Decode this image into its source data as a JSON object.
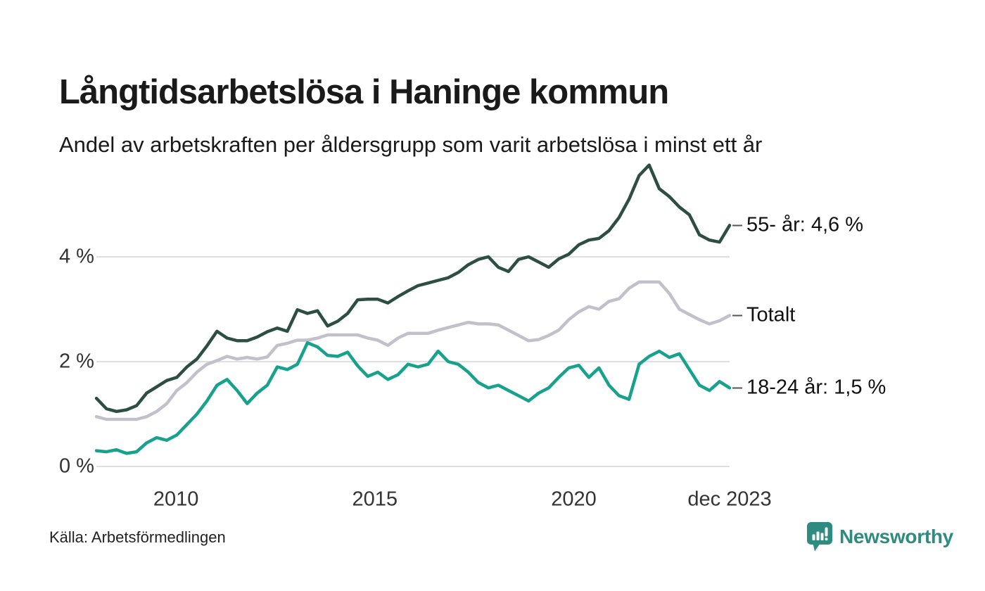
{
  "header": {
    "title": "Långtidsarbetslösa i Haninge kommun",
    "subtitle": "Andel av arbetskraften per åldersgrupp som varit arbetslösa i minst ett år"
  },
  "footer": {
    "source": "Källa: Arbetsförmedlingen",
    "brand": "Newsworthy",
    "brand_color": "#2e8b7f"
  },
  "chart_data": {
    "type": "line",
    "title": "Långtidsarbetslösa i Haninge kommun",
    "subtitle": "Andel av arbetskraften per åldersgrupp som varit arbetslösa i minst ett år",
    "unit": "% av arbetskraften",
    "grid": true,
    "x_start": 2008.0,
    "x_end": 2023.917,
    "x_resolution": "quarterly",
    "x_tick_labels": [
      "2010",
      "2015",
      "2020",
      "dec 2023"
    ],
    "x_tick_positions": [
      2010,
      2015,
      2020,
      2023.917
    ],
    "y_ticks": [
      {
        "value": 0,
        "label": "0 %"
      },
      {
        "value": 2,
        "label": "2 %"
      },
      {
        "value": 4,
        "label": "4 %"
      }
    ],
    "ylim": [
      0,
      5.9
    ],
    "legend_position": "right-end-labels",
    "series": [
      {
        "name": "55- år",
        "label": "55- år: 4,6 %",
        "end_value": "4,6 %",
        "color": "#2d4e42",
        "values": [
          1.3,
          1.1,
          1.05,
          1.08,
          1.16,
          1.4,
          1.52,
          1.64,
          1.7,
          1.9,
          2.05,
          2.3,
          2.58,
          2.45,
          2.4,
          2.4,
          2.47,
          2.57,
          2.64,
          2.58,
          2.99,
          2.92,
          2.97,
          2.68,
          2.77,
          2.92,
          3.18,
          3.19,
          3.19,
          3.12,
          3.24,
          3.35,
          3.45,
          3.5,
          3.55,
          3.6,
          3.7,
          3.85,
          3.95,
          4.0,
          3.8,
          3.72,
          3.95,
          4.0,
          3.9,
          3.8,
          3.96,
          4.05,
          4.23,
          4.32,
          4.35,
          4.5,
          4.75,
          5.1,
          5.55,
          5.75,
          5.3,
          5.15,
          4.95,
          4.8,
          4.42,
          4.32,
          4.28,
          4.6
        ]
      },
      {
        "name": "Totalt",
        "label": "Totalt",
        "end_value": "2,9 %",
        "color": "#c2c1cb",
        "values": [
          0.95,
          0.9,
          0.9,
          0.9,
          0.9,
          0.95,
          1.05,
          1.2,
          1.45,
          1.6,
          1.8,
          1.95,
          2.02,
          2.1,
          2.05,
          2.08,
          2.05,
          2.09,
          2.31,
          2.35,
          2.41,
          2.41,
          2.45,
          2.51,
          2.51,
          2.51,
          2.51,
          2.45,
          2.41,
          2.31,
          2.45,
          2.54,
          2.54,
          2.54,
          2.6,
          2.65,
          2.7,
          2.75,
          2.72,
          2.72,
          2.7,
          2.6,
          2.5,
          2.4,
          2.42,
          2.5,
          2.6,
          2.8,
          2.95,
          3.05,
          3.0,
          3.15,
          3.2,
          3.4,
          3.52,
          3.52,
          3.52,
          3.3,
          3.0,
          2.9,
          2.8,
          2.72,
          2.78,
          2.88
        ]
      },
      {
        "name": "18-24 år",
        "label": "18-24 år: 1,5 %",
        "end_value": "1,5 %",
        "color": "#16a28c",
        "values": [
          0.3,
          0.28,
          0.32,
          0.25,
          0.28,
          0.45,
          0.55,
          0.5,
          0.6,
          0.8,
          1.0,
          1.25,
          1.55,
          1.66,
          1.45,
          1.2,
          1.4,
          1.55,
          1.9,
          1.85,
          1.95,
          2.36,
          2.28,
          2.12,
          2.1,
          2.18,
          1.92,
          1.72,
          1.8,
          1.66,
          1.75,
          1.95,
          1.9,
          1.95,
          2.2,
          2.0,
          1.95,
          1.8,
          1.6,
          1.5,
          1.55,
          1.45,
          1.35,
          1.25,
          1.4,
          1.5,
          1.7,
          1.88,
          1.93,
          1.7,
          1.88,
          1.55,
          1.35,
          1.28,
          1.95,
          2.1,
          2.2,
          2.08,
          2.15,
          1.85,
          1.55,
          1.45,
          1.62,
          1.5
        ]
      }
    ]
  }
}
